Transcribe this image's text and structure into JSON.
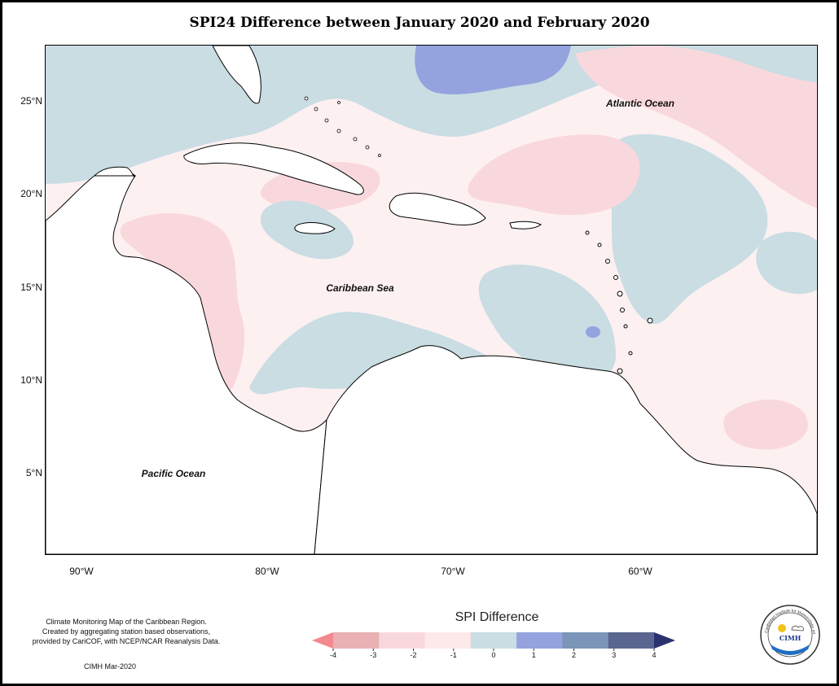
{
  "title": "SPI24 Difference between January 2020 and February 2020",
  "map": {
    "labels": {
      "atlantic": "Atlantic Ocean",
      "caribbean": "Caribbean Sea",
      "pacific": "Pacific Ocean"
    },
    "lat_ticks": [
      "25°N",
      "20°N",
      "15°N",
      "10°N",
      "5°N"
    ],
    "lon_ticks": [
      "90°W",
      "80°W",
      "70°W",
      "60°W"
    ]
  },
  "legend": {
    "title": "SPI Difference",
    "ticks": [
      "-4",
      "-3",
      "-2",
      "-1",
      "0",
      "1",
      "2",
      "3",
      "4"
    ],
    "colors": [
      "#f4898f",
      "#e9b1b4",
      "#f9d8dd",
      "#fde9ea",
      "#c9dde3",
      "#94a3de",
      "#7a95b8",
      "#5a6690",
      "#2c3270"
    ]
  },
  "notes": {
    "line1": "Climate Monitoring Map of the Caribbean Region.",
    "line2": "Created by aggregating station based observations,",
    "line3": "provided by CariCOF, with NCEP/NCAR Reanalysis Data.",
    "credit": "CIMH Mar-2020"
  },
  "logo": {
    "text": "CIMH",
    "ring_text": "Caribbean Institute for Meteorology and Hydrology"
  }
}
